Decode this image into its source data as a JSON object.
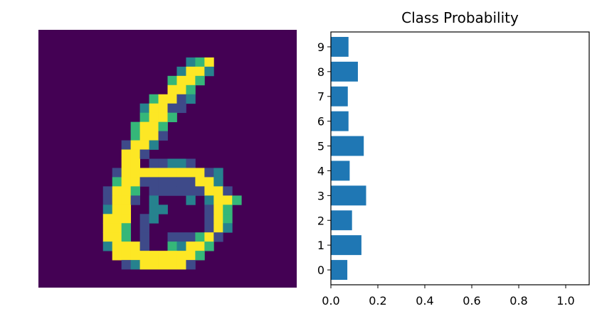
{
  "figure": {
    "image_panel": {
      "colormap": "viridis",
      "digit_shown": "6",
      "grid_size": [
        28,
        28
      ],
      "pixels": [
        "............................",
        "............................",
        "............................",
        "................bz9.........",
        "...............b99b.........",
        "..............z99z..........",
        "..............99z...........",
        "............z99ab...........",
        "...........b99aa............",
        "...........z99z.............",
        "..........z99z..............",
        "..........z99a..............",
        ".........a99b...............",
        ".........99a................",
        ".........99.aabba...........",
        "........a999999999ab........",
        "........z99aaaaaa99b........",
        ".......a99z.aaaaaa99a.......",
        ".......a99a.b...b.b99z......",
        ".......b99..bb....a9z.......",
        ".......999.ab.....a9z.......",
        ".......99z.a......a9b.......",
        ".......99z.a..aaaz9a........",
        ".......b999a..zb99z.........",
        "........999999999z..........",
        ".........ab99999a...........",
        "............................",
        "............................"
      ],
      "palette": {
        ".": "#440154",
        "a": "#3e4a89",
        "b": "#26828e",
        "z": "#35b779",
        "9": "#fde725"
      }
    }
  },
  "chart_data": {
    "type": "bar",
    "orientation": "horizontal",
    "title": "Class Probability",
    "xlabel": "",
    "ylabel": "",
    "categories": [
      "0",
      "1",
      "2",
      "3",
      "4",
      "5",
      "6",
      "7",
      "8",
      "9"
    ],
    "values": [
      0.07,
      0.13,
      0.09,
      0.15,
      0.08,
      0.14,
      0.075,
      0.072,
      0.115,
      0.075
    ],
    "xlim": [
      0,
      1.1
    ],
    "xticks": [
      "0.0",
      "0.2",
      "0.4",
      "0.6",
      "0.8",
      "1.0"
    ],
    "xtick_values": [
      0.0,
      0.2,
      0.4,
      0.6,
      0.8,
      1.0
    ],
    "bar_color": "#1f77b4",
    "grid": false,
    "legend": "none"
  }
}
